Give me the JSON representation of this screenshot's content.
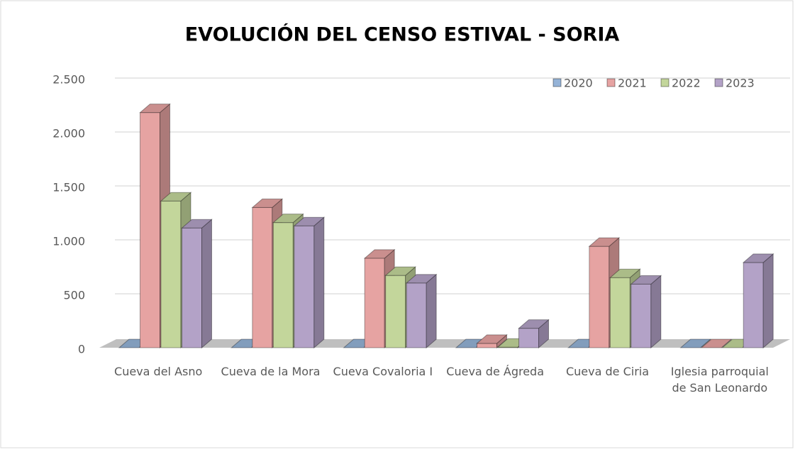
{
  "chart_data": {
    "type": "bar3d",
    "title": "EVOLUCIÓN DEL CENSO ESTIVAL - SORIA",
    "categories": [
      "Cueva del Asno",
      "Cueva de la Mora",
      "Cueva Covaloria I",
      "Cueva de Ágreda",
      "Cueva de Ciria",
      "Iglesia parroquial de San Leonardo"
    ],
    "series": [
      {
        "name": "2020",
        "color": "#95b3d7",
        "values": [
          0,
          0,
          0,
          0,
          0,
          0
        ]
      },
      {
        "name": "2021",
        "color": "#e6a3a2",
        "values": [
          2180,
          1300,
          830,
          40,
          940,
          0
        ]
      },
      {
        "name": "2022",
        "color": "#c3d69b",
        "values": [
          1360,
          1160,
          670,
          5,
          650,
          0
        ]
      },
      {
        "name": "2023",
        "color": "#b3a2c7",
        "values": [
          1110,
          1130,
          600,
          180,
          590,
          790
        ]
      }
    ],
    "ylim": [
      0,
      2500
    ],
    "yticks": [
      0,
      500,
      {
        "value": 1000,
        "label": "1.000"
      },
      {
        "value": 1500,
        "label": "1.500"
      },
      {
        "value": 2000,
        "label": "2.000"
      },
      {
        "value": 2500,
        "label": "2.500"
      }
    ],
    "grid": true,
    "legend": "top-right"
  }
}
